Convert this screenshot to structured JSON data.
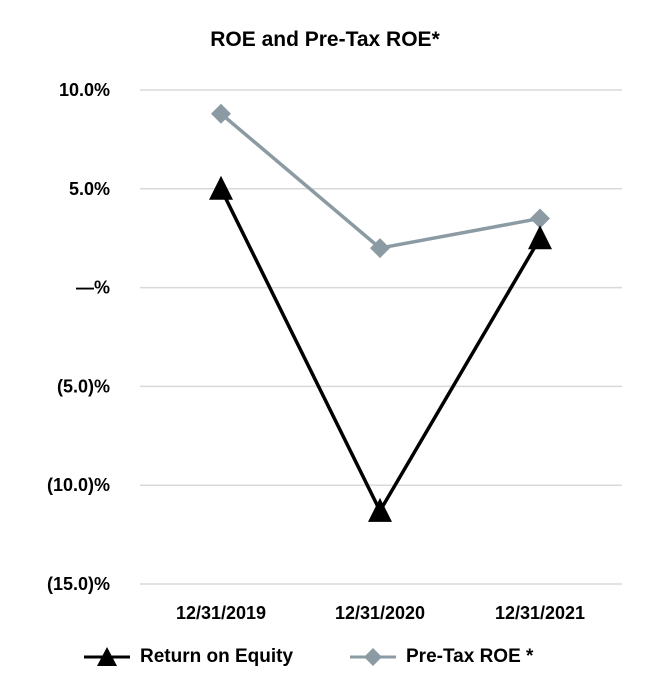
{
  "chart_data": {
    "type": "line",
    "title": "ROE and Pre-Tax ROE*",
    "categories": [
      "12/31/2019",
      "12/31/2020",
      "12/31/2021"
    ],
    "y_tick_values": [
      10,
      5,
      0,
      -5,
      -10,
      -15
    ],
    "y_tick_labels": [
      "10.0%",
      "5.0%",
      "—%",
      "(5.0)%",
      "(10.0)%",
      "(15.0)%"
    ],
    "ylim": [
      -15,
      10
    ],
    "grid": true,
    "legend_position": "bottom",
    "series": [
      {
        "name": "Return on Equity",
        "values": [
          5.0,
          -11.3,
          2.5
        ],
        "color": "#000000",
        "marker": "triangle"
      },
      {
        "name": "Pre-Tax ROE *",
        "values": [
          8.8,
          2.0,
          3.5
        ],
        "color": "#8c9ba3",
        "marker": "diamond"
      }
    ]
  }
}
